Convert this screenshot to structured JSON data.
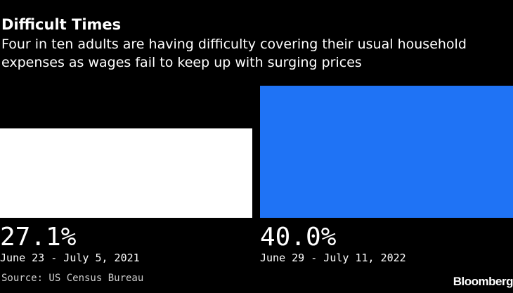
{
  "header": {
    "title": "Difficult Times",
    "subtitle_lines": [
      "Four in ten adults are having difficulty covering their usual household",
      "expenses as wages fail to keep up with surging prices"
    ]
  },
  "chart_data": {
    "type": "bar",
    "categories": [
      "June 23 - July 5, 2021",
      "June 29 - July 11, 2022"
    ],
    "values": [
      27.1,
      40.0
    ],
    "value_labels": [
      "27.1%",
      "40.0%"
    ],
    "colors": [
      "#ffffff",
      "#1f73f5"
    ],
    "title": "Difficult Times",
    "ylim": [
      0,
      45
    ],
    "grid": false
  },
  "footer": {
    "source": "Source: US Census Bureau",
    "brand": "Bloomberg"
  }
}
